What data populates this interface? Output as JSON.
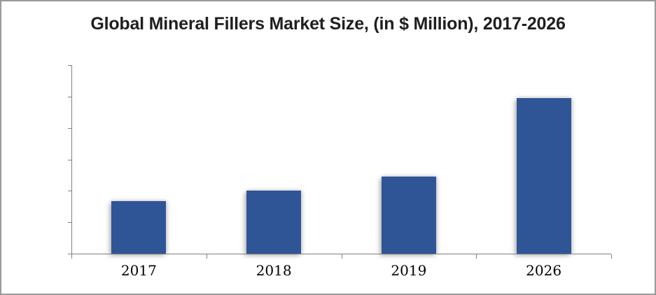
{
  "window": {
    "background": "#ffffff",
    "border_color": "#9a9a9a"
  },
  "title": "Global Mineral Fillers Market Size, (in $ Million), 2017-2026",
  "chart_data": {
    "type": "bar",
    "title": "Global Mineral Fillers Market Size, (in $ Million), 2017-2026",
    "categories": [
      "2017",
      "2018",
      "2019",
      "2026"
    ],
    "values": [
      1.67,
      2.01,
      2.45,
      4.95
    ],
    "value_note": "y-axis shows tick marks only, no numeric labels; values estimated in gridline units (1 unit = spacing between adjacent y-axis ticks)",
    "xlabel": "",
    "ylabel": "",
    "ylim": [
      0,
      6
    ],
    "y_tick_count": 7,
    "x_boundary_tick_count": 5,
    "grid": false,
    "legend": false,
    "bar_color": "#2f5597",
    "axis_color": "#808080",
    "label_color": "#000000",
    "title_color": "#1f1f1f"
  }
}
